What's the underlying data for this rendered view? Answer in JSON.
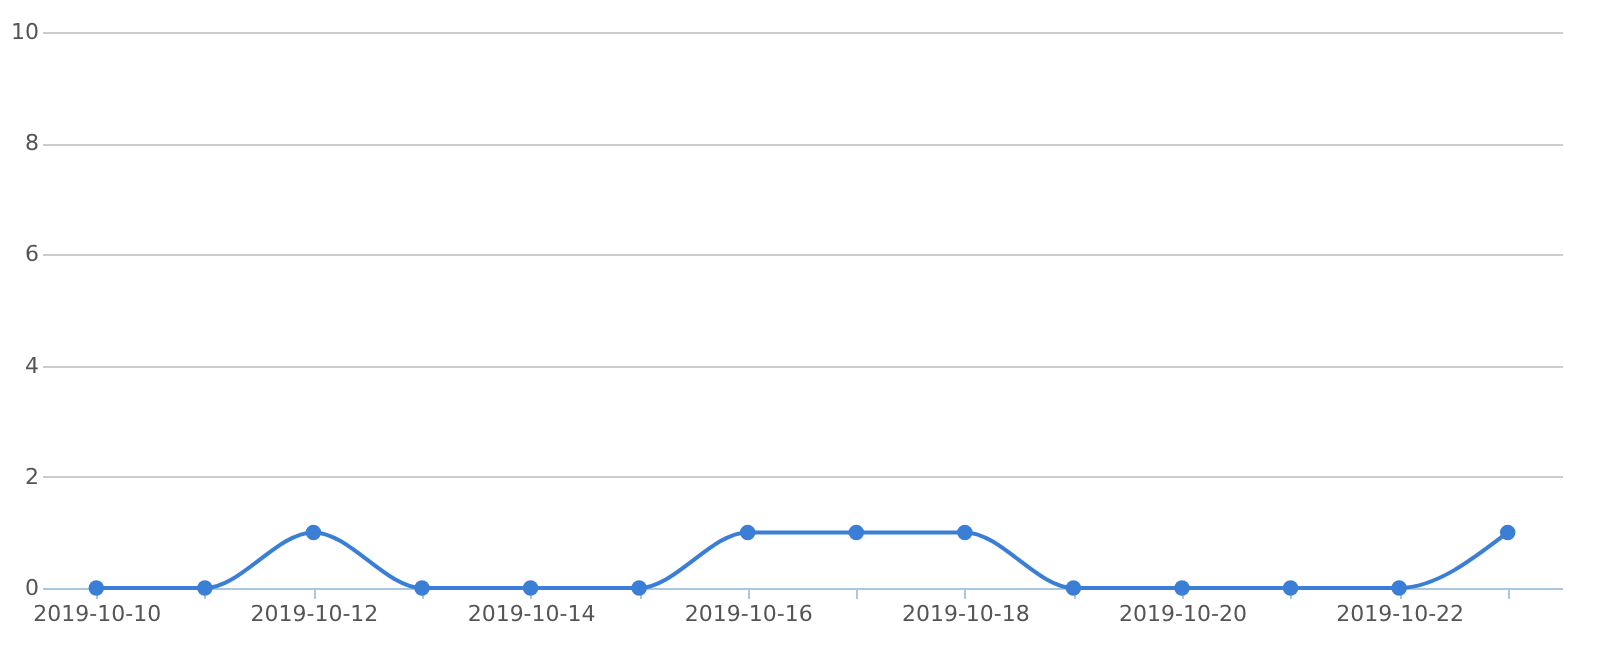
{
  "chart_data": {
    "type": "line",
    "categories": [
      "2019-10-10",
      null,
      "2019-10-12",
      null,
      "2019-10-14",
      null,
      "2019-10-16",
      null,
      "2019-10-18",
      null,
      "2019-10-20",
      null,
      "2019-10-22",
      null
    ],
    "series": [
      {
        "color": "#3a7fd5",
        "values": [
          0,
          0,
          1,
          0,
          0,
          0,
          1,
          1,
          1,
          0,
          0,
          0,
          0,
          1
        ]
      }
    ],
    "ylim": [
      0,
      10
    ],
    "yticks": [
      0,
      2,
      4,
      6,
      8,
      10
    ],
    "grid": "y",
    "marker": "circle",
    "line_style": "solid"
  }
}
